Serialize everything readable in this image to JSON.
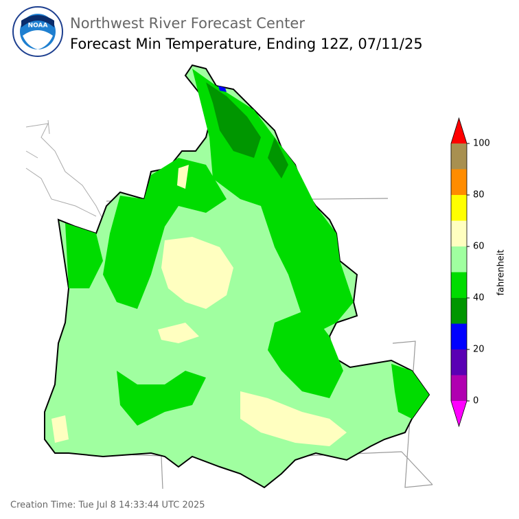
{
  "header": {
    "logo_text": "NOAA",
    "agency": "Northwest River Forecast Center",
    "title": "Forecast Min Temperature, Ending 12Z, 07/11/25"
  },
  "colorbar": {
    "label": "fahrenheit",
    "levels": [
      0,
      10,
      20,
      30,
      40,
      50,
      60,
      70,
      80,
      90,
      100
    ],
    "colors": [
      "#b000b0",
      "#5a00b4",
      "#0000ff",
      "#009600",
      "#00dc00",
      "#a0ffa0",
      "#ffffc0",
      "#ffff00",
      "#ff8c00",
      "#a89050"
    ],
    "under_color": "#ff00ff",
    "over_color": "#ff0000",
    "ticks": [
      0,
      20,
      40,
      60,
      80,
      100
    ]
  },
  "footer": {
    "creation_time": "Creation Time: Tue Jul 8 14:33:44 UTC 2025"
  }
}
